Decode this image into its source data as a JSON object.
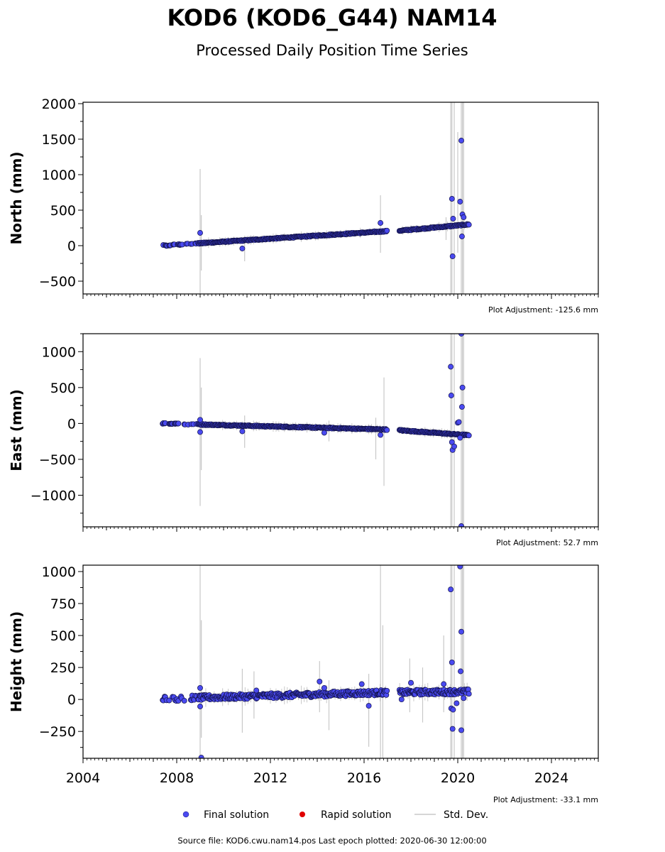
{
  "header": {
    "title": "KOD6 (KOD6_G44) NAM14",
    "subtitle": "Processed Daily Position Time Series"
  },
  "legend": {
    "final_label": "Final solution",
    "rapid_label": "Rapid solution",
    "std_label": "Std. Dev.",
    "final_color": "#4a4af0",
    "rapid_color": "#e00000",
    "std_color": "#c8c8c8"
  },
  "footer": {
    "source": "Source file: KOD6.cwu.nam14.pos  Last epoch plotted: 2020-06-30 12:00:00"
  },
  "chart_data": [
    {
      "type": "scatter",
      "ylabel": "North (mm)",
      "adjustment": "Plot Adjustment: -125.6 mm",
      "xlim": [
        2004,
        2026
      ],
      "ylim": [
        -680,
        2020
      ],
      "yticks": [
        -500,
        0,
        500,
        1000,
        1500,
        2000
      ],
      "ytick_labels": [
        "−500",
        "0",
        "500",
        "1000",
        "1500",
        "2000"
      ],
      "xticks": [
        2004,
        2008,
        2012,
        2016,
        2020,
        2024
      ],
      "trend": {
        "start": [
          2007.4,
          0
        ],
        "end": [
          2017.0,
          205
        ],
        "start2": [
          2017.5,
          210
        ],
        "end2": [
          2020.5,
          300
        ]
      },
      "gap": [
        2017.0,
        2017.5
      ],
      "outliers": [
        [
          2009.0,
          180
        ],
        [
          2010.8,
          -40
        ],
        [
          2016.7,
          320
        ],
        [
          2019.75,
          660
        ],
        [
          2019.78,
          -150
        ],
        [
          2020.1,
          620
        ],
        [
          2020.15,
          1480
        ],
        [
          2020.2,
          440
        ],
        [
          2020.18,
          130
        ],
        [
          2019.8,
          380
        ],
        [
          2020.25,
          400
        ]
      ],
      "spikes": [
        [
          2009.0,
          -680,
          1080
        ],
        [
          2009.05,
          -350,
          430
        ],
        [
          2010.9,
          -220,
          140
        ],
        [
          2016.7,
          -100,
          710
        ],
        [
          2019.7,
          -680,
          2020
        ],
        [
          2019.75,
          -680,
          2020
        ],
        [
          2019.85,
          -680,
          2020
        ],
        [
          2020.15,
          -680,
          2020
        ],
        [
          2020.2,
          -680,
          2020
        ],
        [
          2020.25,
          -680,
          2020
        ],
        [
          2019.5,
          80,
          400
        ],
        [
          2020.0,
          -100,
          1600
        ]
      ]
    },
    {
      "type": "scatter",
      "ylabel": "East (mm)",
      "adjustment": "Plot Adjustment: 52.7 mm",
      "xlim": [
        2004,
        2026
      ],
      "ylim": [
        -1440,
        1250
      ],
      "yticks": [
        -1000,
        -500,
        0,
        500,
        1000
      ],
      "ytick_labels": [
        "−1000",
        "−500",
        "0",
        "500",
        "1000"
      ],
      "xticks": [
        2004,
        2008,
        2012,
        2016,
        2020,
        2024
      ],
      "trend": {
        "start": [
          2007.4,
          0
        ],
        "end": [
          2017.0,
          -85
        ],
        "start2": [
          2017.5,
          -95
        ],
        "end2": [
          2020.5,
          -165
        ]
      },
      "gap": [
        2017.0,
        2017.5
      ],
      "outliers": [
        [
          2009.0,
          50
        ],
        [
          2009.0,
          -120
        ],
        [
          2010.8,
          -110
        ],
        [
          2014.3,
          -130
        ],
        [
          2016.7,
          -160
        ],
        [
          2019.7,
          790
        ],
        [
          2019.72,
          390
        ],
        [
          2019.75,
          -260
        ],
        [
          2019.78,
          -370
        ],
        [
          2019.85,
          -320
        ],
        [
          2020.0,
          10
        ],
        [
          2020.05,
          20
        ],
        [
          2020.15,
          1250
        ],
        [
          2020.18,
          230
        ],
        [
          2020.2,
          500
        ],
        [
          2020.15,
          -1430
        ],
        [
          2020.1,
          -200
        ]
      ],
      "spikes": [
        [
          2009.0,
          -1150,
          910
        ],
        [
          2009.05,
          -650,
          500
        ],
        [
          2010.9,
          -340,
          110
        ],
        [
          2014.5,
          -250,
          40
        ],
        [
          2016.5,
          -500,
          80
        ],
        [
          2016.85,
          -870,
          640
        ],
        [
          2019.7,
          -1440,
          1250
        ],
        [
          2019.75,
          -1440,
          1250
        ],
        [
          2019.85,
          -1440,
          1250
        ],
        [
          2020.15,
          -1440,
          1250
        ],
        [
          2020.2,
          -1440,
          1250
        ],
        [
          2020.25,
          -1440,
          1250
        ]
      ]
    },
    {
      "type": "scatter",
      "ylabel": "Height (mm)",
      "adjustment": "Plot Adjustment: -33.1 mm",
      "xlim": [
        2004,
        2026
      ],
      "ylim": [
        -460,
        1050
      ],
      "yticks": [
        -250,
        0,
        250,
        500,
        750,
        1000
      ],
      "ytick_labels": [
        "−250",
        "0",
        "250",
        "500",
        "750",
        "1000"
      ],
      "xticks": [
        2004,
        2008,
        2012,
        2016,
        2020,
        2024
      ],
      "xtick_labels": [
        "2004",
        "2008",
        "2012",
        "2016",
        "2020",
        "2024"
      ],
      "trend": {
        "start": [
          2007.4,
          5
        ],
        "end": [
          2017.0,
          55
        ],
        "start2": [
          2017.5,
          55
        ],
        "end2": [
          2020.5,
          60
        ]
      },
      "gap": [
        2017.0,
        2017.5
      ],
      "outliers": [
        [
          2009.0,
          90
        ],
        [
          2009.0,
          -55
        ],
        [
          2009.05,
          -455
        ],
        [
          2011.4,
          70
        ],
        [
          2014.1,
          140
        ],
        [
          2014.3,
          90
        ],
        [
          2015.9,
          120
        ],
        [
          2016.2,
          -50
        ],
        [
          2017.6,
          0
        ],
        [
          2018.0,
          130
        ],
        [
          2019.4,
          120
        ],
        [
          2019.7,
          860
        ],
        [
          2019.75,
          290
        ],
        [
          2019.78,
          -230
        ],
        [
          2019.72,
          -70
        ],
        [
          2019.8,
          -80
        ],
        [
          2019.95,
          -30
        ],
        [
          2020.1,
          1040
        ],
        [
          2020.15,
          530
        ],
        [
          2020.12,
          220
        ],
        [
          2020.15,
          -240
        ],
        [
          2020.25,
          10
        ]
      ],
      "spikes": [
        [
          2009.0,
          -460,
          1050
        ],
        [
          2009.05,
          -300,
          620
        ],
        [
          2010.8,
          -260,
          240
        ],
        [
          2011.3,
          -150,
          220
        ],
        [
          2014.1,
          -100,
          300
        ],
        [
          2014.5,
          -240,
          150
        ],
        [
          2016.2,
          -370,
          200
        ],
        [
          2016.7,
          -460,
          1050
        ],
        [
          2016.8,
          -460,
          580
        ],
        [
          2017.95,
          -100,
          320
        ],
        [
          2018.5,
          -180,
          250
        ],
        [
          2019.4,
          -100,
          500
        ],
        [
          2019.7,
          -460,
          1050
        ],
        [
          2019.75,
          -460,
          1050
        ],
        [
          2019.85,
          -460,
          1050
        ],
        [
          2020.15,
          -460,
          1050
        ],
        [
          2020.2,
          -460,
          1050
        ],
        [
          2020.25,
          -460,
          1050
        ]
      ]
    }
  ]
}
